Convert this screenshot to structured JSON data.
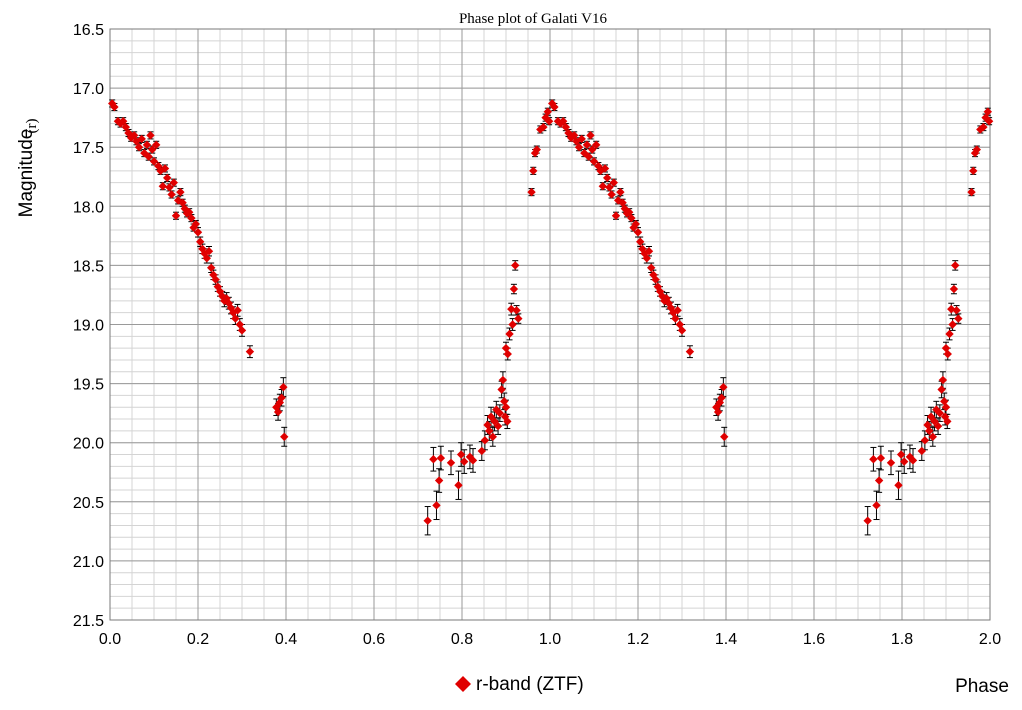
{
  "chart_data": {
    "type": "scatter",
    "title": "Phase plot of Galati V16",
    "xlabel": "Phase",
    "ylabel": "Magnitude",
    "ylabel_unit": "(r)",
    "xlim": [
      0,
      2
    ],
    "ylim": [
      21.5,
      16.5
    ],
    "y_inverted": true,
    "x_major_ticks": [
      "0.0",
      "0.2",
      "0.4",
      "0.6",
      "0.8",
      "1.0",
      "1.2",
      "1.4",
      "1.6",
      "1.8",
      "2.0"
    ],
    "y_major_ticks": [
      "16.5",
      "17.0",
      "17.5",
      "18.0",
      "18.5",
      "19.0",
      "19.5",
      "20.0",
      "20.5",
      "21.0",
      "21.5"
    ],
    "grid": true,
    "legend_position": "bottom-center",
    "series": [
      {
        "name": "r-band (ZTF)",
        "color": "#e00000",
        "marker": "diamond",
        "error_bar_color": "#000000",
        "points": [
          [
            0.005,
            17.13,
            0.03
          ],
          [
            0.01,
            17.16,
            0.03
          ],
          [
            0.018,
            17.28,
            0.03
          ],
          [
            0.024,
            17.3,
            0.03
          ],
          [
            0.03,
            17.28,
            0.03
          ],
          [
            0.036,
            17.33,
            0.03
          ],
          [
            0.042,
            17.38,
            0.03
          ],
          [
            0.048,
            17.42,
            0.03
          ],
          [
            0.055,
            17.4,
            0.03
          ],
          [
            0.06,
            17.45,
            0.03
          ],
          [
            0.066,
            17.5,
            0.03
          ],
          [
            0.072,
            17.43,
            0.03
          ],
          [
            0.078,
            17.55,
            0.03
          ],
          [
            0.084,
            17.48,
            0.03
          ],
          [
            0.088,
            17.58,
            0.03
          ],
          [
            0.092,
            17.4,
            0.03
          ],
          [
            0.096,
            17.52,
            0.03
          ],
          [
            0.1,
            17.62,
            0.03
          ],
          [
            0.105,
            17.48,
            0.03
          ],
          [
            0.11,
            17.66,
            0.03
          ],
          [
            0.115,
            17.7,
            0.03
          ],
          [
            0.12,
            17.83,
            0.03
          ],
          [
            0.125,
            17.68,
            0.03
          ],
          [
            0.13,
            17.76,
            0.03
          ],
          [
            0.135,
            17.84,
            0.03
          ],
          [
            0.14,
            17.9,
            0.03
          ],
          [
            0.145,
            17.8,
            0.03
          ],
          [
            0.15,
            18.08,
            0.03
          ],
          [
            0.155,
            17.95,
            0.03
          ],
          [
            0.16,
            17.88,
            0.03
          ],
          [
            0.165,
            17.97,
            0.03
          ],
          [
            0.17,
            18.02,
            0.03
          ],
          [
            0.175,
            18.06,
            0.03
          ],
          [
            0.18,
            18.05,
            0.03
          ],
          [
            0.185,
            18.1,
            0.03
          ],
          [
            0.19,
            18.18,
            0.03
          ],
          [
            0.195,
            18.15,
            0.03
          ],
          [
            0.2,
            18.22,
            0.04
          ],
          [
            0.205,
            18.3,
            0.04
          ],
          [
            0.21,
            18.36,
            0.04
          ],
          [
            0.215,
            18.4,
            0.04
          ],
          [
            0.22,
            18.44,
            0.04
          ],
          [
            0.225,
            18.38,
            0.04
          ],
          [
            0.23,
            18.52,
            0.04
          ],
          [
            0.235,
            18.58,
            0.04
          ],
          [
            0.24,
            18.62,
            0.04
          ],
          [
            0.245,
            18.68,
            0.04
          ],
          [
            0.25,
            18.72,
            0.04
          ],
          [
            0.255,
            18.76,
            0.04
          ],
          [
            0.26,
            18.8,
            0.05
          ],
          [
            0.265,
            18.78,
            0.05
          ],
          [
            0.27,
            18.82,
            0.05
          ],
          [
            0.275,
            18.86,
            0.05
          ],
          [
            0.28,
            18.9,
            0.05
          ],
          [
            0.285,
            18.95,
            0.05
          ],
          [
            0.29,
            18.88,
            0.05
          ],
          [
            0.295,
            19.0,
            0.05
          ],
          [
            0.3,
            19.05,
            0.05
          ],
          [
            0.318,
            19.23,
            0.05
          ],
          [
            0.378,
            19.7,
            0.07
          ],
          [
            0.382,
            19.74,
            0.07
          ],
          [
            0.386,
            19.66,
            0.07
          ],
          [
            0.39,
            19.62,
            0.07
          ],
          [
            0.394,
            19.53,
            0.08
          ],
          [
            0.396,
            19.95,
            0.08
          ],
          [
            0.722,
            20.66,
            0.12
          ],
          [
            0.735,
            20.14,
            0.1
          ],
          [
            0.742,
            20.53,
            0.12
          ],
          [
            0.748,
            20.32,
            0.1
          ],
          [
            0.752,
            20.13,
            0.1
          ],
          [
            0.775,
            20.17,
            0.1
          ],
          [
            0.792,
            20.36,
            0.12
          ],
          [
            0.798,
            20.1,
            0.1
          ],
          [
            0.805,
            20.16,
            0.1
          ],
          [
            0.818,
            20.12,
            0.1
          ],
          [
            0.825,
            20.15,
            0.1
          ],
          [
            0.845,
            20.07,
            0.08
          ],
          [
            0.852,
            19.98,
            0.08
          ],
          [
            0.858,
            19.85,
            0.08
          ],
          [
            0.862,
            19.9,
            0.08
          ],
          [
            0.866,
            19.78,
            0.08
          ],
          [
            0.87,
            19.95,
            0.08
          ],
          [
            0.874,
            19.82,
            0.08
          ],
          [
            0.878,
            19.72,
            0.07
          ],
          [
            0.882,
            19.86,
            0.07
          ],
          [
            0.886,
            19.75,
            0.07
          ],
          [
            0.89,
            19.55,
            0.07
          ],
          [
            0.893,
            19.47,
            0.07
          ],
          [
            0.896,
            19.65,
            0.07
          ],
          [
            0.898,
            19.78,
            0.07
          ],
          [
            0.9,
            19.7,
            0.06
          ],
          [
            0.903,
            19.82,
            0.06
          ],
          [
            0.9,
            19.2,
            0.05
          ],
          [
            0.904,
            19.25,
            0.05
          ],
          [
            0.908,
            19.08,
            0.05
          ],
          [
            0.912,
            18.87,
            0.05
          ],
          [
            0.915,
            19.0,
            0.05
          ],
          [
            0.918,
            18.7,
            0.04
          ],
          [
            0.921,
            18.5,
            0.04
          ],
          [
            0.924,
            18.88,
            0.04
          ],
          [
            0.928,
            18.95,
            0.04
          ]
        ],
        "extra_points_phase_gt_1": [
          [
            0.958,
            17.88,
            0.03
          ],
          [
            0.962,
            17.7,
            0.03
          ],
          [
            0.966,
            17.55,
            0.03
          ],
          [
            0.97,
            17.52,
            0.03
          ],
          [
            0.978,
            17.35,
            0.03
          ],
          [
            0.985,
            17.33,
            0.03
          ],
          [
            0.99,
            17.25,
            0.03
          ],
          [
            0.995,
            17.2,
            0.03
          ],
          [
            0.998,
            17.28,
            0.03
          ]
        ]
      }
    ]
  }
}
